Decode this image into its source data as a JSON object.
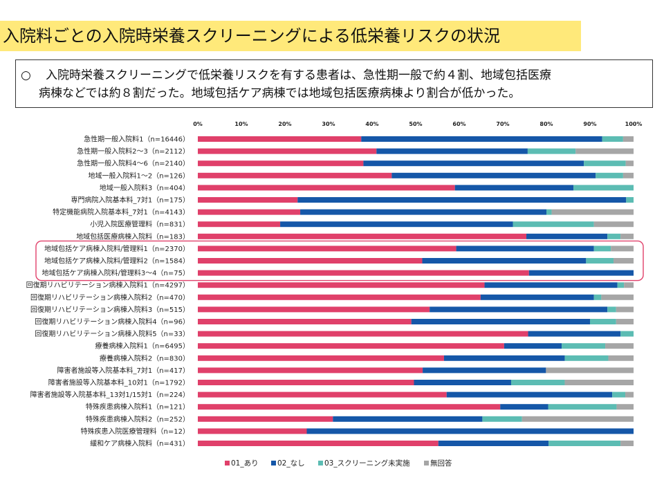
{
  "header": {
    "title": "入院料ごとの入院時栄養スクリーニングによる低栄養リスクの状況"
  },
  "summary": {
    "bullet": "○",
    "line1": "入院時栄養スクリーニングで低栄養リスクを有する患者は、急性期一般で約４割、地域包括医療",
    "line2": "病棟などでは約８割だった。地域包括ケア病棟では地域包括医療病棟より割合が低かった。"
  },
  "colors": {
    "title_band": "#ffe97a",
    "highlight_box": "#e0406a"
  },
  "chart_data": {
    "type": "bar",
    "orientation": "horizontal",
    "stacked": true,
    "normalized": true,
    "categories": [
      "急性期一般入院料1（n=16446）",
      "急性期一般入院料2～3（n=2112）",
      "急性期一般入院料4～6（n=2140）",
      "地域一般入院料1～2（n=126）",
      "地域一般入院料3（n=404）",
      "専門病院入院基本料_7対1（n=175）",
      "特定機能病院入院基本料_7対1（n=4143）",
      "小児入院医療管理料（n=831）",
      "地域包括医療病棟入院料（n=183）",
      "地域包括ケア病棟入院料/管理料1（n=2370）",
      "地域包括ケア病棟入院料/管理料2（n=1584）",
      "地域包括ケア病棟入院料/管理料3～4（n=75）",
      "回復期リハビリテーション病棟入院料1（n=4297）",
      "回復期リハビリテーション病棟入院料2（n=470）",
      "回復期リハビリテーション病棟入院料3（n=515）",
      "回復期リハビリテーション病棟入院料4（n=96）",
      "回復期リハビリテーション病棟入院料5（n=33）",
      "療養病棟入院料1（n=6495）",
      "療養病棟入院料2（n=830）",
      "障害者施設等入院基本料_7対1（n=417）",
      "障害者施設等入院基本料_10対1（n=1792）",
      "障害者施設等入院基本料_13対1/15対1（n=224）",
      "特殊疾患病棟入院料1（n=121）",
      "特殊疾患病棟入院料2（n=252）",
      "特殊疾患入院医療管理料（n=12）",
      "緩和ケア病棟入院料（n=431）"
    ],
    "series": [
      {
        "name": "01_あり",
        "color": "#e0406a",
        "values": [
          37.5,
          41.0,
          38.0,
          44.5,
          59.0,
          22.9,
          23.5,
          18.9,
          75.4,
          59.3,
          51.5,
          76.0,
          65.8,
          64.9,
          53.2,
          49.0,
          75.8,
          70.3,
          56.5,
          51.6,
          49.6,
          57.1,
          69.4,
          31.0,
          25.0,
          55.2
        ]
      },
      {
        "name": "02_なし",
        "color": "#1557a8",
        "values": [
          55.3,
          34.7,
          50.6,
          46.8,
          27.2,
          75.4,
          56.5,
          53.4,
          18.6,
          31.6,
          37.6,
          24.0,
          30.5,
          26.0,
          40.8,
          41.0,
          21.2,
          13.2,
          27.7,
          28.3,
          22.3,
          38.0,
          11.0,
          34.3,
          75.0,
          25.3
        ]
      },
      {
        "name": "03_スクリーニング未実施",
        "color": "#5cbcb3",
        "values": [
          4.8,
          11.0,
          9.6,
          6.3,
          13.8,
          1.7,
          1.2,
          18.6,
          3.0,
          3.9,
          6.3,
          0.0,
          1.5,
          1.7,
          2.0,
          6.0,
          3.0,
          10.0,
          10.0,
          0.0,
          12.3,
          3.0,
          15.7,
          9.1,
          0.0,
          16.5
        ]
      },
      {
        "name": "無回答",
        "color": "#a6a6a6",
        "values": [
          2.4,
          13.3,
          1.8,
          2.4,
          0.0,
          0.0,
          18.8,
          9.1,
          3.0,
          5.2,
          4.6,
          0.0,
          2.2,
          7.4,
          4.0,
          4.0,
          0.0,
          6.5,
          5.8,
          20.1,
          15.8,
          1.9,
          3.9,
          25.6,
          0.0,
          3.0
        ]
      }
    ],
    "x_ticks": [
      "0%",
      "10%",
      "20%",
      "30%",
      "40%",
      "50%",
      "60%",
      "70%",
      "80%",
      "90%",
      "100%"
    ],
    "xlim": [
      0,
      100
    ],
    "grid": false,
    "legend_position": "bottom",
    "highlighted_categories": [
      "地域包括ケア病棟入院料/管理料1（n=2370）",
      "地域包括ケア病棟入院料/管理料2（n=1584）",
      "地域包括ケア病棟入院料/管理料3～4（n=75）"
    ]
  }
}
